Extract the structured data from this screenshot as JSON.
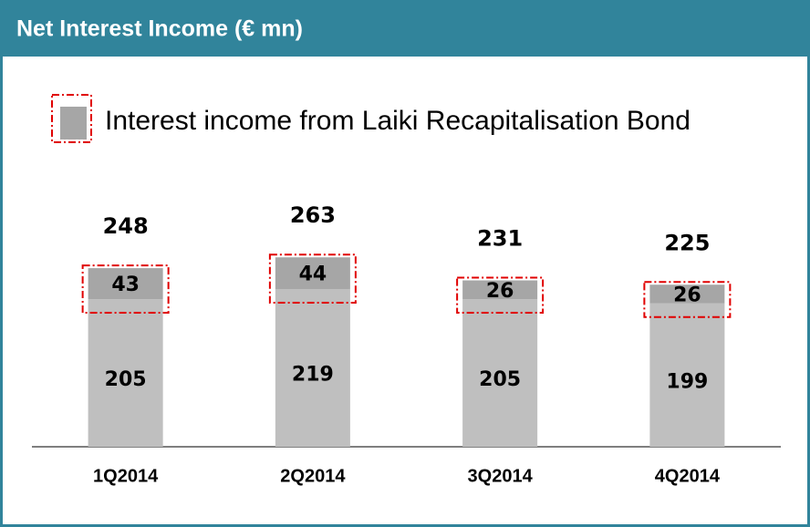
{
  "chart_data": {
    "type": "stacked_bar",
    "title": "Net Interest Income (€ mn)",
    "categories": [
      "1Q2014",
      "2Q2014",
      "3Q2014",
      "4Q2014"
    ],
    "series": [
      {
        "color": "#bfbfbf",
        "values": [
          205,
          219,
          205,
          199
        ]
      },
      {
        "name": "Interest income from Laiki Recapitalisation Bond",
        "color": "#a6a6a6",
        "values": [
          43,
          44,
          26,
          26
        ]
      }
    ],
    "totals": [
      248,
      263,
      231,
      225
    ]
  }
}
